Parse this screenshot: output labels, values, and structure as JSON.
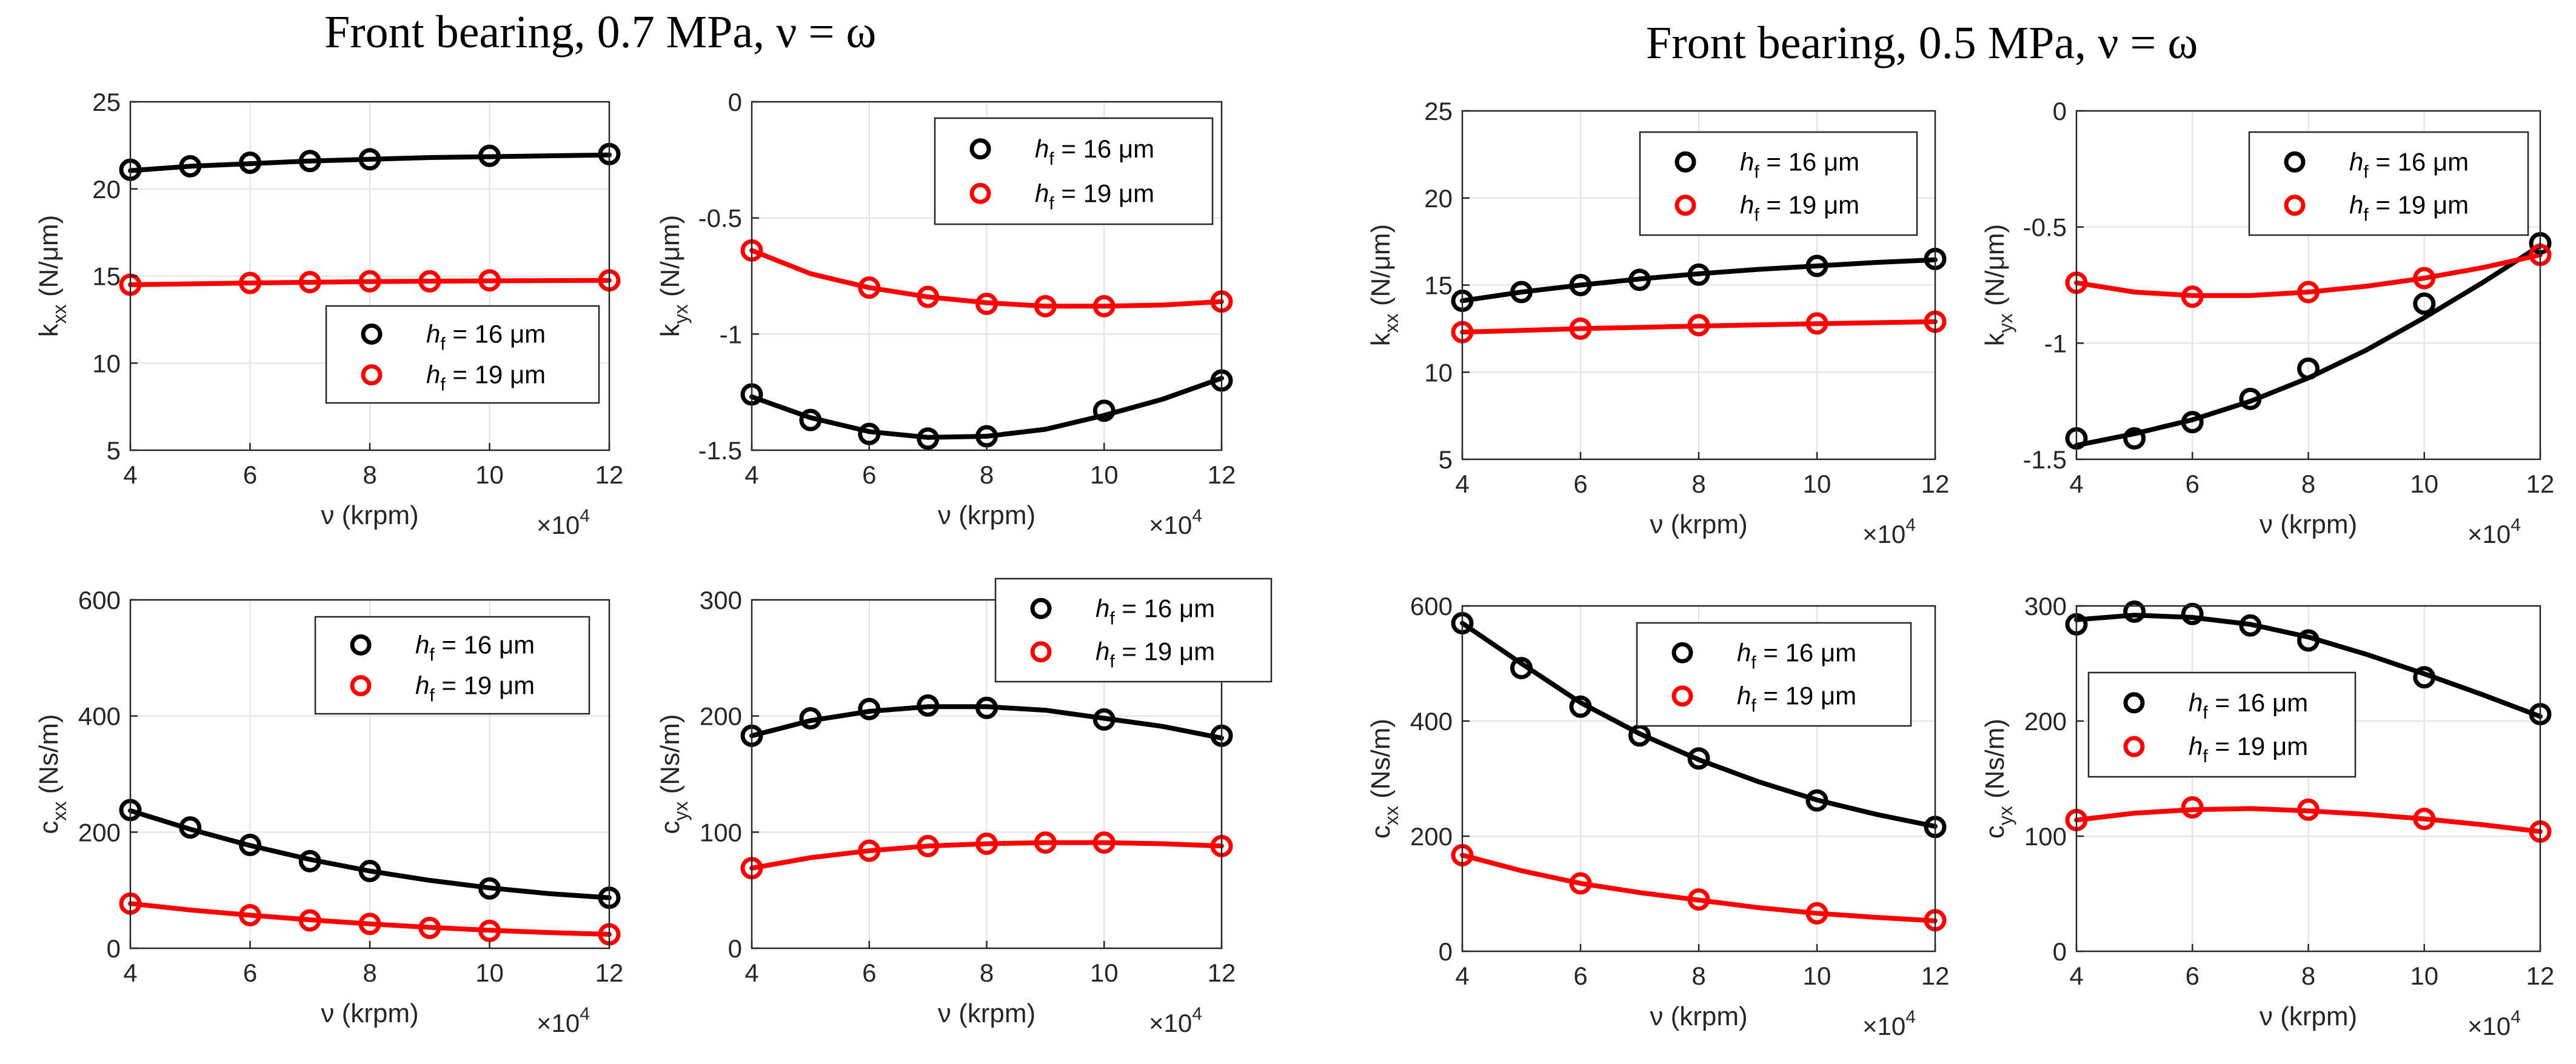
{
  "figure": {
    "titles": [
      "Front bearing, 0.7 MPa, ν = ω",
      "Front bearing, 0.5 MPa, ν = ω"
    ]
  },
  "colors": {
    "series_black": "#000000",
    "series_red": "#ff0000",
    "grid": "#e2e2e2",
    "axis": "#262626",
    "legend_border": "#262626"
  },
  "chart_data": [
    {
      "id": "07-kxx",
      "group": "Front bearing, 0.7 MPa, ν = ω",
      "type": "scatter",
      "ylabel_main": "k",
      "ylabel_sub": "xx",
      "ylabel_unit": "(N/μm)",
      "xlabel": "ν (krpm)",
      "x_multiplier_base": "×10",
      "x_multiplier_exp": "4",
      "xlim": [
        4,
        12
      ],
      "ylim": [
        5,
        25
      ],
      "xticks": [
        4,
        6,
        8,
        10,
        12
      ],
      "yticks": [
        5,
        10,
        15,
        20,
        25
      ],
      "grid": true,
      "legend_position": "lower-right",
      "series": [
        {
          "name_main": "h",
          "name_sub": "f",
          "name_rest": " = 16 μm",
          "color": "#000000",
          "x": [
            4,
            5,
            6,
            7,
            8,
            10,
            12
          ],
          "y": [
            21.1,
            21.3,
            21.5,
            21.6,
            21.7,
            21.9,
            22.0
          ],
          "fit_x": [
            4,
            5,
            6,
            7,
            8,
            9,
            10,
            11,
            12
          ],
          "fit_y": [
            21.05,
            21.3,
            21.45,
            21.6,
            21.7,
            21.8,
            21.85,
            21.9,
            21.95
          ]
        },
        {
          "name_main": "h",
          "name_sub": "f",
          "name_rest": " = 19 μm",
          "color": "#ff0000",
          "x": [
            4,
            6,
            7,
            8,
            9,
            10,
            12
          ],
          "y": [
            14.5,
            14.6,
            14.65,
            14.7,
            14.7,
            14.75,
            14.75
          ],
          "fit_x": [
            4,
            6,
            8,
            10,
            12
          ],
          "fit_y": [
            14.5,
            14.6,
            14.68,
            14.72,
            14.75
          ]
        }
      ]
    },
    {
      "id": "07-kyx",
      "group": "Front bearing, 0.7 MPa, ν = ω",
      "type": "scatter",
      "ylabel_main": "k",
      "ylabel_sub": "yx",
      "ylabel_unit": "(N/μm)",
      "xlabel": "ν (krpm)",
      "x_multiplier_base": "×10",
      "x_multiplier_exp": "4",
      "xlim": [
        4,
        12
      ],
      "ylim": [
        -1.5,
        0
      ],
      "xticks": [
        4,
        6,
        8,
        10,
        12
      ],
      "yticks": [
        -1.5,
        -1,
        -0.5,
        0
      ],
      "grid": true,
      "legend_position": "top-right",
      "series": [
        {
          "name_main": "h",
          "name_sub": "f",
          "name_rest": " = 16 μm",
          "color": "#000000",
          "x": [
            4,
            5,
            6,
            7,
            8,
            10,
            12
          ],
          "y": [
            -1.26,
            -1.37,
            -1.43,
            -1.45,
            -1.44,
            -1.33,
            -1.2
          ],
          "fit_x": [
            4,
            5,
            6,
            7,
            8,
            9,
            10,
            11,
            12
          ],
          "fit_y": [
            -1.27,
            -1.36,
            -1.42,
            -1.445,
            -1.44,
            -1.41,
            -1.35,
            -1.28,
            -1.19
          ]
        },
        {
          "name_main": "h",
          "name_sub": "f",
          "name_rest": " = 19 μm",
          "color": "#ff0000",
          "x": [
            4,
            6,
            7,
            8,
            9,
            10,
            12
          ],
          "y": [
            -0.64,
            -0.8,
            -0.84,
            -0.87,
            -0.88,
            -0.88,
            -0.86
          ],
          "fit_x": [
            4,
            5,
            6,
            7,
            8,
            9,
            10,
            11,
            12
          ],
          "fit_y": [
            -0.64,
            -0.74,
            -0.8,
            -0.84,
            -0.865,
            -0.88,
            -0.88,
            -0.875,
            -0.86
          ]
        }
      ]
    },
    {
      "id": "07-cxx",
      "group": "Front bearing, 0.7 MPa, ν = ω",
      "type": "scatter",
      "ylabel_main": "c",
      "ylabel_sub": "xx",
      "ylabel_unit": "(Ns/m)",
      "xlabel": "ν (krpm)",
      "x_multiplier_base": "×10",
      "x_multiplier_exp": "4",
      "xlim": [
        4,
        12
      ],
      "ylim": [
        0,
        600
      ],
      "xticks": [
        4,
        6,
        8,
        10,
        12
      ],
      "yticks": [
        0,
        200,
        400,
        600
      ],
      "grid": true,
      "legend_position": "top-right",
      "series": [
        {
          "name_main": "h",
          "name_sub": "f",
          "name_rest": " = 16 μm",
          "color": "#000000",
          "x": [
            4,
            5,
            6,
            7,
            8,
            10,
            12
          ],
          "y": [
            238,
            208,
            178,
            150,
            133,
            103,
            87
          ],
          "fit_x": [
            4,
            5,
            6,
            7,
            8,
            9,
            10,
            11,
            12
          ],
          "fit_y": [
            237,
            205,
            177,
            153,
            133,
            117,
            104,
            94,
            87
          ]
        },
        {
          "name_main": "h",
          "name_sub": "f",
          "name_rest": " = 19 μm",
          "color": "#ff0000",
          "x": [
            4,
            6,
            7,
            8,
            9,
            10,
            12
          ],
          "y": [
            77,
            57,
            48,
            42,
            35,
            30,
            24
          ],
          "fit_x": [
            4,
            5,
            6,
            7,
            8,
            9,
            10,
            11,
            12
          ],
          "fit_y": [
            77,
            66,
            57,
            49,
            42,
            36,
            31,
            27,
            24
          ]
        }
      ]
    },
    {
      "id": "07-cyx",
      "group": "Front bearing, 0.7 MPa, ν = ω",
      "type": "scatter",
      "ylabel_main": "c",
      "ylabel_sub": "yx",
      "ylabel_unit": "(Ns/m)",
      "xlabel": "ν (krpm)",
      "x_multiplier_base": "×10",
      "x_multiplier_exp": "4",
      "xlim": [
        4,
        12
      ],
      "ylim": [
        0,
        300
      ],
      "xticks": [
        4,
        6,
        8,
        10,
        12
      ],
      "yticks": [
        0,
        100,
        200,
        300
      ],
      "grid": true,
      "legend_position": "top-right",
      "series": [
        {
          "name_main": "h",
          "name_sub": "f",
          "name_rest": " = 16 μm",
          "color": "#000000",
          "x": [
            4,
            5,
            6,
            7,
            8,
            10,
            12
          ],
          "y": [
            183,
            198,
            206,
            209,
            207,
            197,
            183
          ],
          "fit_x": [
            4,
            5,
            6,
            7,
            8,
            9,
            10,
            11,
            12
          ],
          "fit_y": [
            183,
            196,
            204,
            208,
            208,
            205,
            198,
            191,
            181
          ]
        },
        {
          "name_main": "h",
          "name_sub": "f",
          "name_rest": " = 19 μm",
          "color": "#ff0000",
          "x": [
            4,
            6,
            7,
            8,
            9,
            10,
            12
          ],
          "y": [
            69,
            84,
            88,
            90,
            91,
            91,
            88
          ],
          "fit_x": [
            4,
            5,
            6,
            7,
            8,
            9,
            10,
            11,
            12
          ],
          "fit_y": [
            69,
            78,
            84,
            88,
            90,
            91,
            91,
            90,
            88
          ]
        }
      ]
    },
    {
      "id": "05-kxx",
      "group": "Front bearing, 0.5 MPa, ν = ω",
      "type": "scatter",
      "ylabel_main": "k",
      "ylabel_sub": "xx",
      "ylabel_unit": "(N/μm)",
      "xlabel": "ν (krpm)",
      "x_multiplier_base": "×10",
      "x_multiplier_exp": "4",
      "xlim": [
        4,
        12
      ],
      "ylim": [
        5,
        25
      ],
      "xticks": [
        4,
        6,
        8,
        10,
        12
      ],
      "yticks": [
        5,
        10,
        15,
        20,
        25
      ],
      "grid": true,
      "legend_position": "top-right",
      "series": [
        {
          "name_main": "h",
          "name_sub": "f",
          "name_rest": " = 16 μm",
          "color": "#000000",
          "x": [
            4,
            5,
            6,
            7,
            8,
            10,
            12
          ],
          "y": [
            14.1,
            14.6,
            15.0,
            15.3,
            15.6,
            16.1,
            16.5
          ],
          "fit_x": [
            4,
            5,
            6,
            7,
            8,
            9,
            10,
            11,
            12
          ],
          "fit_y": [
            14.1,
            14.6,
            15.0,
            15.35,
            15.65,
            15.9,
            16.1,
            16.3,
            16.45
          ]
        },
        {
          "name_main": "h",
          "name_sub": "f",
          "name_rest": " = 19 μm",
          "color": "#ff0000",
          "x": [
            4,
            6,
            8,
            10,
            12
          ],
          "y": [
            12.3,
            12.5,
            12.7,
            12.8,
            12.9
          ],
          "fit_x": [
            4,
            6,
            8,
            10,
            12
          ],
          "fit_y": [
            12.3,
            12.5,
            12.65,
            12.78,
            12.9
          ]
        }
      ]
    },
    {
      "id": "05-kyx",
      "group": "Front bearing, 0.5 MPa, ν = ω",
      "type": "scatter",
      "ylabel_main": "k",
      "ylabel_sub": "yx",
      "ylabel_unit": "(N/μm)",
      "xlabel": "ν (krpm)",
      "x_multiplier_base": "×10",
      "x_multiplier_exp": "4",
      "xlim": [
        4,
        12
      ],
      "ylim": [
        -1.5,
        0
      ],
      "xticks": [
        4,
        6,
        8,
        10,
        12
      ],
      "yticks": [
        -1.5,
        -1,
        -0.5,
        0
      ],
      "grid": true,
      "legend_position": "top-right",
      "series": [
        {
          "name_main": "h",
          "name_sub": "f",
          "name_rest": " = 16 μm",
          "color": "#000000",
          "x": [
            4,
            5,
            6,
            7,
            8,
            10,
            12
          ],
          "y": [
            -1.41,
            -1.41,
            -1.34,
            -1.24,
            -1.11,
            -0.83,
            -0.57
          ],
          "fit_x": [
            4,
            5,
            6,
            7,
            8,
            9,
            10,
            11,
            12
          ],
          "fit_y": [
            -1.44,
            -1.39,
            -1.33,
            -1.25,
            -1.15,
            -1.03,
            -0.89,
            -0.74,
            -0.58
          ]
        },
        {
          "name_main": "h",
          "name_sub": "f",
          "name_rest": " = 19 μm",
          "color": "#ff0000",
          "x": [
            4,
            6,
            8,
            10,
            12
          ],
          "y": [
            -0.74,
            -0.8,
            -0.78,
            -0.72,
            -0.62
          ],
          "fit_x": [
            4,
            5,
            6,
            7,
            8,
            9,
            10,
            11,
            12
          ],
          "fit_y": [
            -0.74,
            -0.78,
            -0.795,
            -0.795,
            -0.78,
            -0.755,
            -0.72,
            -0.675,
            -0.62
          ]
        }
      ]
    },
    {
      "id": "05-cxx",
      "group": "Front bearing, 0.5 MPa, ν = ω",
      "type": "scatter",
      "ylabel_main": "c",
      "ylabel_sub": "xx",
      "ylabel_unit": "(Ns/m)",
      "xlabel": "ν (krpm)",
      "x_multiplier_base": "×10",
      "x_multiplier_exp": "4",
      "xlim": [
        4,
        12
      ],
      "ylim": [
        0,
        600
      ],
      "xticks": [
        4,
        6,
        8,
        10,
        12
      ],
      "yticks": [
        0,
        200,
        400,
        600
      ],
      "grid": true,
      "legend_position": "top-right",
      "series": [
        {
          "name_main": "h",
          "name_sub": "f",
          "name_rest": " = 16 μm",
          "color": "#000000",
          "x": [
            4,
            5,
            6,
            7,
            8,
            10,
            12
          ],
          "y": [
            570,
            492,
            425,
            375,
            335,
            262,
            216
          ],
          "fit_x": [
            4,
            5,
            6,
            7,
            8,
            9,
            10,
            11,
            12
          ],
          "fit_y": [
            570,
            500,
            432,
            378,
            333,
            295,
            263,
            238,
            217
          ]
        },
        {
          "name_main": "h",
          "name_sub": "f",
          "name_rest": " = 19 μm",
          "color": "#ff0000",
          "x": [
            4,
            6,
            8,
            10,
            12
          ],
          "y": [
            167,
            118,
            90,
            66,
            54
          ],
          "fit_x": [
            4,
            5,
            6,
            7,
            8,
            9,
            10,
            11,
            12
          ],
          "fit_y": [
            167,
            140,
            118,
            102,
            89,
            76,
            66,
            59,
            53
          ]
        }
      ]
    },
    {
      "id": "05-cyx",
      "group": "Front bearing, 0.5 MPa, ν = ω",
      "type": "scatter",
      "ylabel_main": "c",
      "ylabel_sub": "yx",
      "ylabel_unit": "(Ns/m)",
      "xlabel": "ν (krpm)",
      "x_multiplier_base": "×10",
      "x_multiplier_exp": "4",
      "xlim": [
        4,
        12
      ],
      "ylim": [
        0,
        300
      ],
      "xticks": [
        4,
        6,
        8,
        10,
        12
      ],
      "yticks": [
        0,
        100,
        200,
        300
      ],
      "grid": true,
      "legend_position": "middle-left",
      "series": [
        {
          "name_main": "h",
          "name_sub": "f",
          "name_rest": " = 16 μm",
          "color": "#000000",
          "x": [
            4,
            5,
            6,
            7,
            8,
            10,
            12
          ],
          "y": [
            284,
            295,
            293,
            283,
            270,
            238,
            206
          ],
          "fit_x": [
            4,
            5,
            6,
            7,
            8,
            9,
            10,
            11,
            12
          ],
          "fit_y": [
            288,
            292,
            290,
            284,
            273,
            258,
            241,
            223,
            204
          ]
        },
        {
          "name_main": "h",
          "name_sub": "f",
          "name_rest": " = 19 μm",
          "color": "#ff0000",
          "x": [
            4,
            6,
            8,
            10,
            12
          ],
          "y": [
            114,
            125,
            123,
            115,
            104
          ],
          "fit_x": [
            4,
            5,
            6,
            7,
            8,
            9,
            10,
            11,
            12
          ],
          "fit_y": [
            114,
            120,
            123,
            124,
            122,
            119,
            115,
            110,
            104
          ]
        }
      ]
    }
  ]
}
